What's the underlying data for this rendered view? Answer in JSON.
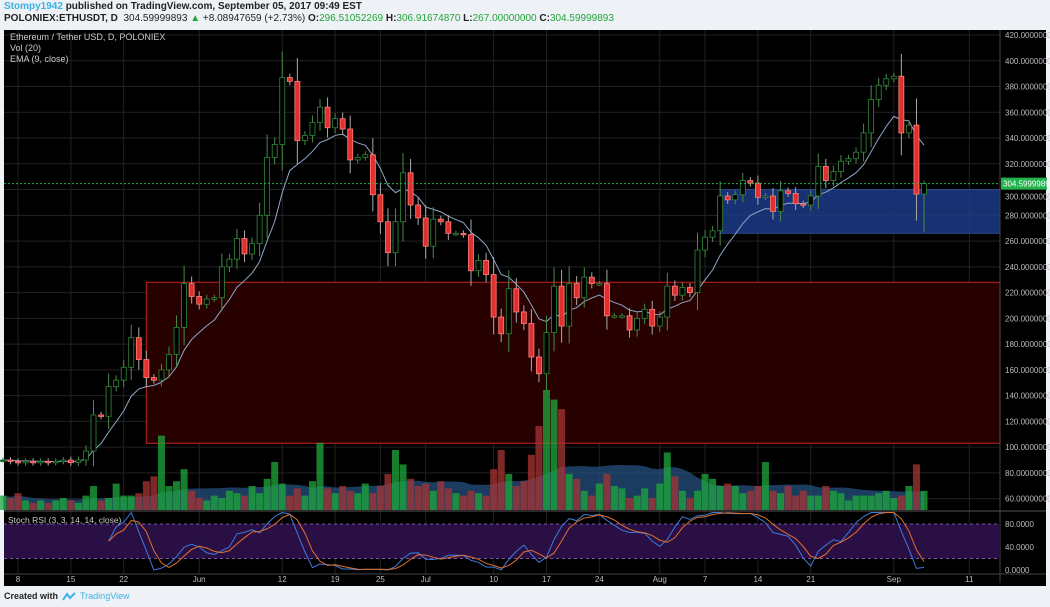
{
  "header": {
    "user": "Stompy1942",
    "published": "published on TradingView.com, September 05, 2017 09:49 EST",
    "symbol": "POLONIEX:ETHUSDT, D",
    "last": "304.59999893",
    "change_icon": "triangle-up-icon",
    "change": "+8.08947659 (+2.73%)",
    "o_label": "O:",
    "o": "296.51052269",
    "h_label": "H:",
    "h": "306.91674870",
    "l_label": "L:",
    "l": "267.00000000",
    "c_label": "C:",
    "c": "304.59999893"
  },
  "legend": {
    "title": "Ethereum / Tether USD, D, POLONIEX",
    "vol": "Vol (20)",
    "ema": "EMA (9, close)",
    "stoch": "Stoch RSI (3, 3, 14, 14, close)"
  },
  "footer": {
    "created": "Created with",
    "brand": "TradingView",
    "logo_icon": "tradingview-logo-icon"
  },
  "colors": {
    "background": "#000000",
    "up": "#2e8b3a",
    "down": "#e0302e",
    "ema": "#8fa8c8",
    "vol_up": "#1fa83c",
    "vol_down": "#a83434",
    "vol_ma": "#24507e",
    "stoch_k": "#3d7bd9",
    "stoch_d": "#e0702e",
    "stoch_band": "#2a0f45",
    "resistance_zone": "#2a0000",
    "support_zone": "#1c3a86",
    "last_price": "#22b14c",
    "user_link": "#3bb3e4"
  },
  "chart_data": {
    "type": "candlestick",
    "start_date": "2017-05-06",
    "end_date": "2017-09-05",
    "interval": "D",
    "close": [
      90,
      89,
      88,
      89,
      88,
      89,
      88,
      89,
      90,
      88,
      90,
      97,
      125,
      124,
      147,
      152,
      162,
      185,
      168,
      154,
      152,
      160,
      172,
      193,
      227,
      217,
      211,
      215,
      216,
      240,
      246,
      262,
      250,
      258,
      280,
      325,
      335,
      387,
      384,
      338,
      342,
      352,
      364,
      348,
      355,
      347,
      323,
      325,
      327,
      296,
      275,
      251,
      275,
      313,
      288,
      278,
      256,
      277,
      275,
      266,
      266,
      265,
      237,
      245,
      234,
      201,
      188,
      223,
      205,
      196,
      170,
      157,
      189,
      225,
      194,
      227,
      216,
      232,
      227,
      227,
      202,
      202,
      202,
      191,
      200,
      207,
      194,
      201,
      225,
      218,
      224,
      220,
      253,
      263,
      268,
      295,
      292,
      296,
      307,
      305,
      294,
      295,
      283,
      299,
      297,
      289,
      288,
      295,
      318,
      307,
      314,
      322,
      324,
      329,
      344,
      370,
      381,
      386,
      388,
      344,
      350,
      296.51,
      304.6
    ],
    "last_candle": {
      "open": 296.51052269,
      "high": 306.9167487,
      "low": 267.0,
      "close": 304.59999893
    },
    "volume_relative": [
      12,
      10,
      14,
      8,
      6,
      8,
      6,
      8,
      10,
      8,
      6,
      12,
      20,
      8,
      10,
      22,
      12,
      12,
      14,
      24,
      28,
      62,
      20,
      24,
      34,
      16,
      10,
      8,
      12,
      10,
      16,
      14,
      12,
      20,
      14,
      26,
      40,
      22,
      12,
      18,
      12,
      24,
      56,
      18,
      14,
      20,
      16,
      14,
      22,
      14,
      20,
      30,
      50,
      38,
      26,
      20,
      22,
      16,
      24,
      18,
      14,
      12,
      16,
      14,
      12,
      34,
      50,
      30,
      20,
      24,
      46,
      70,
      100,
      92,
      84,
      30,
      26,
      16,
      12,
      22,
      30,
      20,
      18,
      10,
      12,
      18,
      10,
      22,
      48,
      28,
      16,
      10,
      16,
      30,
      26,
      20,
      22,
      20,
      14,
      16,
      20,
      40,
      16,
      14,
      20,
      12,
      16,
      12,
      12,
      20,
      16,
      14,
      8,
      12,
      12,
      12,
      14,
      16,
      10,
      12,
      20,
      38,
      16
    ],
    "indicators": [
      "Vol (20)",
      "EMA (9, close)",
      "Stoch RSI (3, 3, 14, 14, close)"
    ],
    "price_axis": {
      "ylim": [
        55,
        425
      ],
      "ticks": [
        "420.00000000",
        "400.00000000",
        "380.00000000",
        "360.00000000",
        "340.00000000",
        "320.00000000",
        "300.00000000",
        "280.00000000",
        "260.00000000",
        "240.00000000",
        "220.00000000",
        "200.00000000",
        "180.00000000",
        "160.00000000",
        "140.00000000",
        "120.00000000",
        "100.00000000",
        "80.00000000",
        "60.00000000"
      ]
    },
    "last_price_label": "304.59999893",
    "stoch_axis": {
      "ylim": [
        0,
        100
      ],
      "ticks": [
        "80.0000",
        "40.0000",
        "0.0000"
      ],
      "bands": [
        20,
        80
      ]
    },
    "date_ticks": [
      {
        "label": "8",
        "date": "2017-05-08"
      },
      {
        "label": "15",
        "date": "2017-05-15"
      },
      {
        "label": "22",
        "date": "2017-05-22"
      },
      {
        "label": "Jun",
        "date": "2017-06-01"
      },
      {
        "label": "12",
        "date": "2017-06-12"
      },
      {
        "label": "19",
        "date": "2017-06-19"
      },
      {
        "label": "25",
        "date": "2017-06-25"
      },
      {
        "label": "Jul",
        "date": "2017-07-01"
      },
      {
        "label": "10",
        "date": "2017-07-10"
      },
      {
        "label": "17",
        "date": "2017-07-17"
      },
      {
        "label": "24",
        "date": "2017-07-24"
      },
      {
        "label": "Aug",
        "date": "2017-08-01"
      },
      {
        "label": "7",
        "date": "2017-08-07"
      },
      {
        "label": "14",
        "date": "2017-08-14"
      },
      {
        "label": "21",
        "date": "2017-08-21"
      },
      {
        "label": "Sep",
        "date": "2017-09-01"
      },
      {
        "label": "11",
        "date": "2017-09-11"
      }
    ],
    "drawings": [
      {
        "kind": "rectangle",
        "name": "resistance-zone",
        "from_date": "2017-05-25",
        "price_top": 228,
        "price_bottom": 103,
        "extends": "right"
      },
      {
        "kind": "rectangle",
        "name": "support-zone",
        "from_date": "2017-08-09",
        "price_top": 300,
        "price_bottom": 266,
        "extends": "right"
      }
    ]
  }
}
